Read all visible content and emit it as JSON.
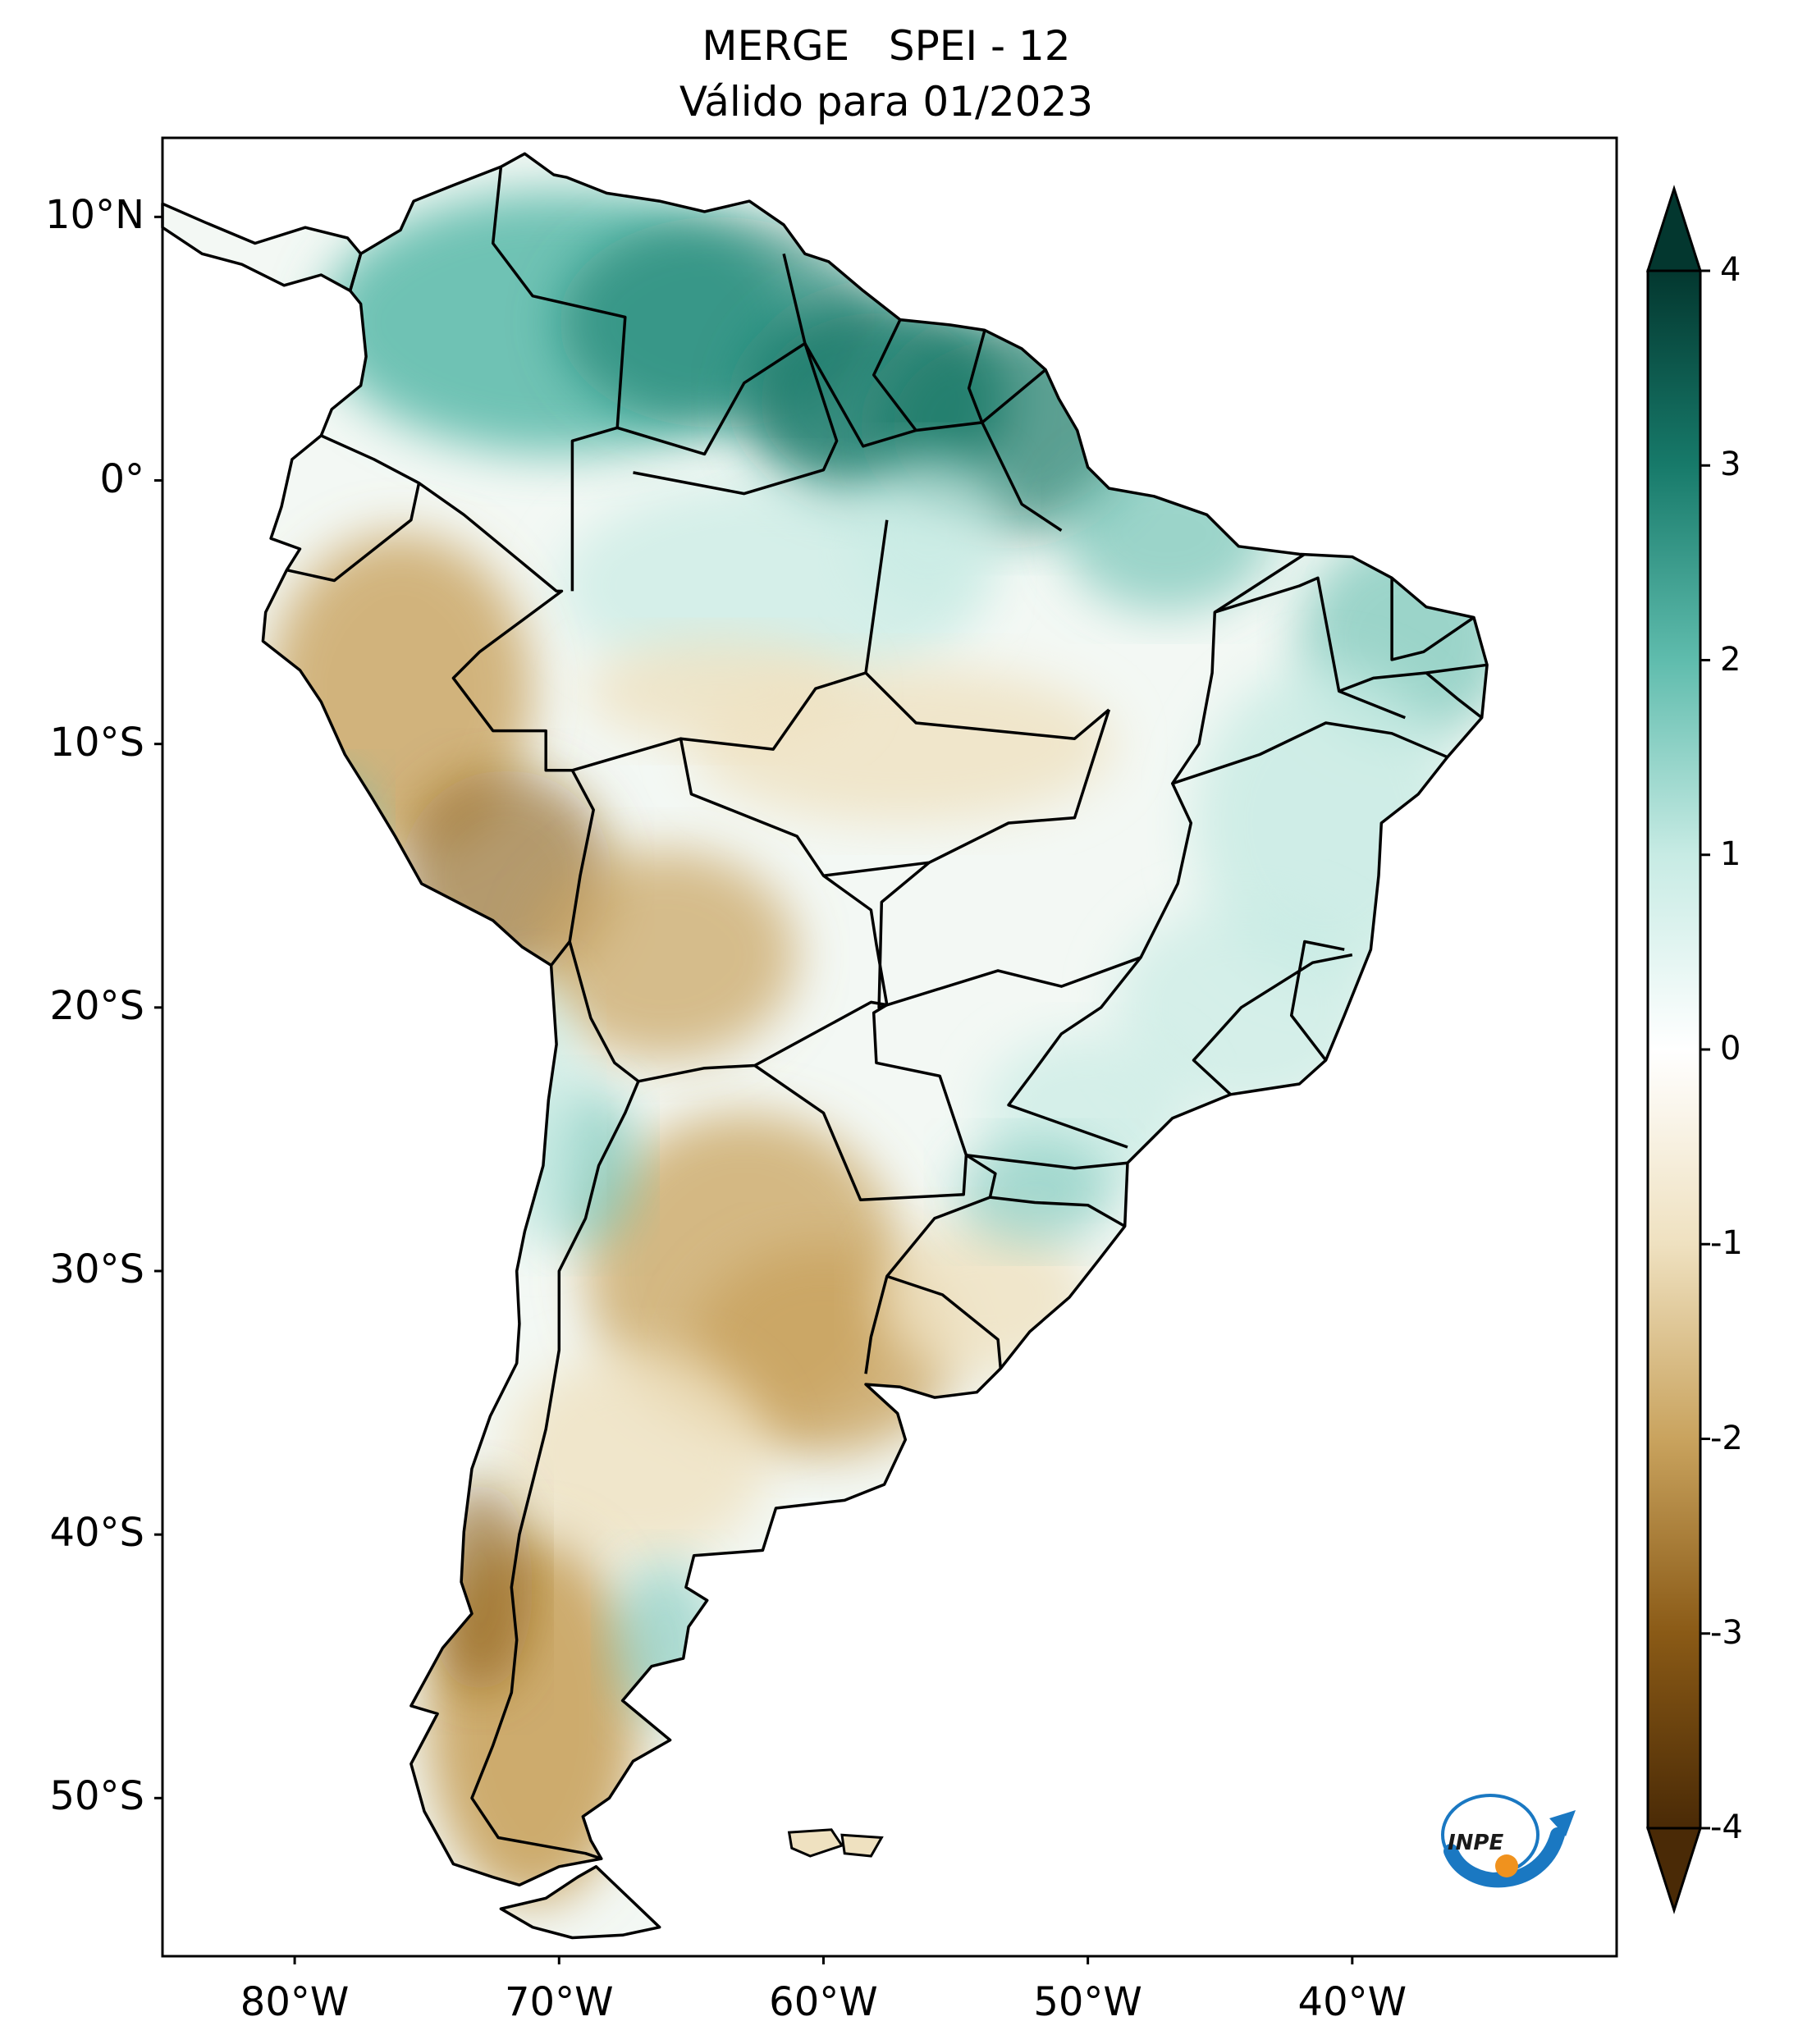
{
  "title": {
    "line1": "MERGE   SPEI - 12",
    "line2": "Válido para 01/2023"
  },
  "map": {
    "extent_lon": [
      -85,
      -30
    ],
    "extent_lat": [
      -56,
      13
    ],
    "lat_ticks": [
      {
        "value": 10,
        "label": "10°N"
      },
      {
        "value": 0,
        "label": "0°"
      },
      {
        "value": -10,
        "label": "10°S"
      },
      {
        "value": -20,
        "label": "20°S"
      },
      {
        "value": -30,
        "label": "30°S"
      },
      {
        "value": -40,
        "label": "40°S"
      },
      {
        "value": -50,
        "label": "50°S"
      }
    ],
    "lon_ticks": [
      {
        "value": -80,
        "label": "80°W"
      },
      {
        "value": -70,
        "label": "70°W"
      },
      {
        "value": -60,
        "label": "60°W"
      },
      {
        "value": -50,
        "label": "50°W"
      },
      {
        "value": -40,
        "label": "40°W"
      }
    ]
  },
  "colorbar": {
    "min": -4,
    "max": 4,
    "ticks": [
      "4",
      "3",
      "2",
      "1",
      "0",
      "-1",
      "-2",
      "-3",
      "-4"
    ],
    "colors": {
      "dry_extreme": "#4a2a06",
      "dry_strong": "#8a5a16",
      "dry_moderate": "#c9a35e",
      "dry_mild": "#efe1c0",
      "neutral": "#ffffff",
      "wet_mild": "#c7ebe4",
      "wet_moderate": "#5fbcad",
      "wet_strong": "#177a6a",
      "wet_extreme": "#03372f"
    }
  },
  "logo": {
    "text": "INPE",
    "icon": "inpe-logo-icon",
    "blue": "#1a78c2",
    "orange": "#f0921e"
  }
}
